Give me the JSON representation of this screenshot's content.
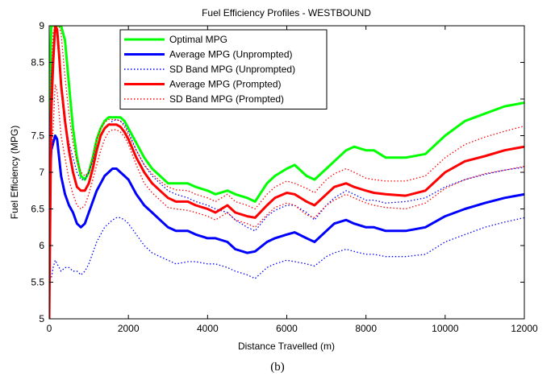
{
  "chart_data": {
    "type": "line",
    "title": "Fuel Efficiency Profiles - WESTBOUND",
    "xlabel": "Distance Travelled (m)",
    "ylabel": "Fuel Efficiency (MPG)",
    "xlim": [
      0,
      12000
    ],
    "ylim": [
      5,
      9
    ],
    "xticks": [
      0,
      2000,
      4000,
      6000,
      8000,
      10000,
      12000
    ],
    "xtick_labels": [
      "0",
      "2000",
      "4000",
      "6000",
      "8000",
      "10000",
      "12000"
    ],
    "yticks": [
      5,
      5.5,
      6,
      6.5,
      7,
      7.5,
      8,
      8.5,
      9
    ],
    "ytick_labels": [
      "5",
      "5.5",
      "6",
      "6.5",
      "7",
      "7.5",
      "8",
      "8.5",
      "9"
    ],
    "grid": false,
    "legend_position": "top-left",
    "series": [
      {
        "name": "Optimal MPG",
        "color": "#00ff00",
        "style": "solid",
        "x": [
          0,
          50,
          100,
          150,
          200,
          250,
          300,
          400,
          500,
          600,
          700,
          800,
          900,
          1000,
          1100,
          1200,
          1300,
          1400,
          1500,
          1600,
          1700,
          1800,
          1900,
          2000,
          2200,
          2400,
          2600,
          2800,
          3000,
          3200,
          3500,
          3700,
          4000,
          4200,
          4500,
          4700,
          5000,
          5200,
          5500,
          5700,
          6000,
          6200,
          6500,
          6700,
          7000,
          7200,
          7500,
          7700,
          8000,
          8200,
          8500,
          9000,
          9500,
          10000,
          10500,
          11000,
          11500,
          12000
        ],
        "y": [
          7.7,
          9.0,
          9.0,
          9.0,
          9.0,
          9.0,
          9.0,
          8.8,
          8.2,
          7.6,
          7.2,
          6.95,
          6.9,
          7.0,
          7.2,
          7.45,
          7.6,
          7.7,
          7.75,
          7.75,
          7.75,
          7.75,
          7.7,
          7.6,
          7.4,
          7.2,
          7.05,
          6.95,
          6.85,
          6.85,
          6.85,
          6.8,
          6.75,
          6.7,
          6.75,
          6.7,
          6.65,
          6.6,
          6.85,
          6.95,
          7.05,
          7.1,
          6.95,
          6.9,
          7.05,
          7.15,
          7.3,
          7.35,
          7.3,
          7.3,
          7.2,
          7.2,
          7.25,
          7.5,
          7.7,
          7.8,
          7.9,
          7.95
        ]
      },
      {
        "name": "Average MPG (Unprompted)",
        "color": "#0000ff",
        "style": "solid",
        "x": [
          0,
          50,
          100,
          150,
          200,
          250,
          300,
          400,
          500,
          600,
          700,
          800,
          900,
          1000,
          1100,
          1200,
          1300,
          1400,
          1500,
          1600,
          1700,
          1800,
          1900,
          2000,
          2200,
          2400,
          2600,
          2800,
          3000,
          3200,
          3500,
          3700,
          4000,
          4200,
          4500,
          4700,
          5000,
          5200,
          5500,
          5700,
          6000,
          6200,
          6500,
          6700,
          7000,
          7200,
          7500,
          7700,
          8000,
          8200,
          8500,
          9000,
          9500,
          10000,
          10500,
          11000,
          11500,
          12000
        ],
        "y": [
          6.6,
          7.3,
          7.4,
          7.5,
          7.45,
          7.2,
          6.95,
          6.7,
          6.55,
          6.45,
          6.3,
          6.25,
          6.3,
          6.45,
          6.6,
          6.75,
          6.85,
          6.95,
          7.0,
          7.05,
          7.05,
          7.0,
          6.95,
          6.9,
          6.7,
          6.55,
          6.45,
          6.35,
          6.25,
          6.2,
          6.2,
          6.15,
          6.1,
          6.1,
          6.05,
          5.95,
          5.9,
          5.92,
          6.05,
          6.1,
          6.15,
          6.18,
          6.1,
          6.05,
          6.2,
          6.3,
          6.35,
          6.3,
          6.25,
          6.25,
          6.2,
          6.2,
          6.25,
          6.4,
          6.5,
          6.58,
          6.65,
          6.7
        ]
      },
      {
        "name": "SD Band MPG (Unprompted)",
        "color": "#0000ff",
        "style": "dotted",
        "x": [
          0,
          50,
          100,
          150,
          200,
          250,
          300,
          400,
          500,
          600,
          700,
          800,
          900,
          1000,
          1100,
          1200,
          1300,
          1400,
          1500,
          1600,
          1700,
          1800,
          1900,
          2000,
          2200,
          2400,
          2600,
          2800,
          3000,
          3200,
          3500,
          3700,
          4000,
          4200,
          4500,
          4700,
          5000,
          5200,
          5500,
          5700,
          6000,
          6200,
          6500,
          6700,
          7000,
          7200,
          7500,
          7700,
          8000,
          8200,
          8500,
          9000,
          9500,
          10000,
          10500,
          11000,
          11500,
          12000
        ],
        "y": [
          5.55,
          5.55,
          5.7,
          5.8,
          5.75,
          5.7,
          5.65,
          5.7,
          5.7,
          5.65,
          5.65,
          5.6,
          5.65,
          5.75,
          5.9,
          6.05,
          6.15,
          6.25,
          6.3,
          6.35,
          6.38,
          6.38,
          6.35,
          6.3,
          6.15,
          6.0,
          5.9,
          5.85,
          5.8,
          5.75,
          5.78,
          5.78,
          5.75,
          5.75,
          5.7,
          5.65,
          5.6,
          5.55,
          5.7,
          5.75,
          5.8,
          5.78,
          5.75,
          5.72,
          5.85,
          5.9,
          5.95,
          5.92,
          5.88,
          5.88,
          5.85,
          5.85,
          5.88,
          6.05,
          6.15,
          6.25,
          6.32,
          6.38
        ]
      },
      {
        "name": "SD Band MPG (Unprompted)",
        "color": "#0000ff",
        "style": "dotted",
        "x": [
          0,
          50,
          100,
          150,
          200,
          250,
          300,
          400,
          500,
          600,
          700,
          800,
          900,
          1000,
          1100,
          1200,
          1300,
          1400,
          1500,
          1600,
          1700,
          1800,
          1900,
          2000,
          2200,
          2400,
          2600,
          2800,
          3000,
          3200,
          3500,
          3700,
          4000,
          4200,
          4500,
          4700,
          5000,
          5200,
          5500,
          5700,
          6000,
          6200,
          6500,
          6700,
          7000,
          7200,
          7500,
          7700,
          8000,
          8200,
          8500,
          9000,
          9500,
          10000,
          10500,
          11000,
          11500,
          12000
        ],
        "y": [
          7.2,
          8.3,
          8.7,
          9.0,
          8.9,
          8.5,
          8.1,
          7.7,
          7.4,
          7.2,
          7.0,
          6.9,
          6.9,
          7.0,
          7.15,
          7.35,
          7.5,
          7.6,
          7.65,
          7.7,
          7.72,
          7.7,
          7.65,
          7.55,
          7.3,
          7.1,
          6.95,
          6.85,
          6.75,
          6.7,
          6.65,
          6.6,
          6.55,
          6.5,
          6.45,
          6.35,
          6.25,
          6.2,
          6.4,
          6.48,
          6.55,
          6.55,
          6.45,
          6.35,
          6.55,
          6.65,
          6.75,
          6.7,
          6.62,
          6.62,
          6.58,
          6.6,
          6.65,
          6.8,
          6.9,
          6.97,
          7.03,
          7.07
        ]
      },
      {
        "name": "Average MPG (Prompted)",
        "color": "#ff0000",
        "style": "solid",
        "x": [
          0,
          50,
          100,
          150,
          200,
          250,
          300,
          400,
          500,
          600,
          700,
          800,
          900,
          1000,
          1100,
          1200,
          1300,
          1400,
          1500,
          1600,
          1700,
          1800,
          1900,
          2000,
          2200,
          2400,
          2600,
          2800,
          3000,
          3200,
          3500,
          3700,
          4000,
          4200,
          4500,
          4700,
          5000,
          5200,
          5500,
          5700,
          6000,
          6200,
          6500,
          6700,
          7000,
          7200,
          7500,
          7700,
          8000,
          8200,
          8500,
          9000,
          9500,
          10000,
          10500,
          11000,
          11500,
          12000
        ],
        "y": [
          5.0,
          7.8,
          8.5,
          9.0,
          8.95,
          8.6,
          8.2,
          7.7,
          7.3,
          7.0,
          6.8,
          6.75,
          6.75,
          6.85,
          7.05,
          7.3,
          7.5,
          7.6,
          7.65,
          7.65,
          7.65,
          7.62,
          7.55,
          7.45,
          7.2,
          7.0,
          6.85,
          6.75,
          6.65,
          6.6,
          6.6,
          6.55,
          6.5,
          6.45,
          6.55,
          6.45,
          6.4,
          6.38,
          6.55,
          6.65,
          6.72,
          6.7,
          6.6,
          6.55,
          6.7,
          6.8,
          6.85,
          6.8,
          6.75,
          6.72,
          6.7,
          6.68,
          6.75,
          7.0,
          7.15,
          7.22,
          7.3,
          7.35
        ]
      },
      {
        "name": "SD Band MPG (Prompted)",
        "color": "#ff0000",
        "style": "dotted",
        "x": [
          0,
          50,
          100,
          150,
          200,
          250,
          300,
          400,
          500,
          600,
          700,
          800,
          900,
          1000,
          1100,
          1200,
          1300,
          1400,
          1500,
          1600,
          1700,
          1800,
          1900,
          2000,
          2200,
          2400,
          2600,
          2800,
          3000,
          3200,
          3500,
          3700,
          4000,
          4200,
          4500,
          4700,
          5000,
          5200,
          5500,
          5700,
          6000,
          6200,
          6500,
          6700,
          7000,
          7200,
          7500,
          7700,
          8000,
          8200,
          8500,
          9000,
          9500,
          10000,
          10500,
          11000,
          11500,
          12000
        ],
        "y": [
          6.6,
          7.2,
          7.6,
          8.2,
          8.1,
          7.8,
          7.5,
          7.2,
          6.9,
          6.7,
          6.55,
          6.5,
          6.55,
          6.7,
          6.9,
          7.1,
          7.3,
          7.45,
          7.55,
          7.58,
          7.58,
          7.55,
          7.48,
          7.38,
          7.1,
          6.85,
          6.72,
          6.62,
          6.52,
          6.5,
          6.48,
          6.45,
          6.4,
          6.35,
          6.45,
          6.35,
          6.3,
          6.25,
          6.42,
          6.52,
          6.58,
          6.55,
          6.42,
          6.38,
          6.55,
          6.62,
          6.7,
          6.65,
          6.58,
          6.55,
          6.52,
          6.5,
          6.58,
          6.78,
          6.9,
          6.98,
          7.03,
          7.08
        ]
      },
      {
        "name": "SD Band MPG (Prompted)",
        "color": "#ff0000",
        "style": "dotted",
        "x": [
          0,
          50,
          100,
          150,
          200,
          250,
          300,
          400,
          500,
          600,
          700,
          800,
          900,
          1000,
          1100,
          1200,
          1300,
          1400,
          1500,
          1600,
          1700,
          1800,
          1900,
          2000,
          2200,
          2400,
          2600,
          2800,
          3000,
          3200,
          3500,
          3700,
          4000,
          4200,
          4500,
          4700,
          5000,
          5200,
          5500,
          5700,
          6000,
          6200,
          6500,
          6700,
          7000,
          7200,
          7500,
          7700,
          8000,
          8200,
          8500,
          9000,
          9500,
          10000,
          10500,
          11000,
          11500,
          12000
        ],
        "y": [
          7.4,
          8.3,
          8.9,
          9.0,
          9.0,
          9.0,
          8.9,
          8.3,
          7.8,
          7.4,
          7.15,
          7.0,
          6.95,
          7.0,
          7.2,
          7.45,
          7.6,
          7.68,
          7.72,
          7.72,
          7.72,
          7.7,
          7.62,
          7.52,
          7.3,
          7.1,
          6.98,
          6.88,
          6.8,
          6.76,
          6.75,
          6.7,
          6.65,
          6.6,
          6.7,
          6.6,
          6.55,
          6.5,
          6.7,
          6.8,
          6.88,
          6.85,
          6.78,
          6.72,
          6.9,
          6.98,
          7.05,
          7.0,
          6.92,
          6.9,
          6.88,
          6.88,
          6.95,
          7.2,
          7.38,
          7.48,
          7.56,
          7.63
        ]
      }
    ],
    "legend_entries": [
      {
        "name": "Optimal MPG",
        "color": "#00ff00",
        "style": "solid"
      },
      {
        "name": "Average MPG (Unprompted)",
        "color": "#0000ff",
        "style": "solid"
      },
      {
        "name": "SD Band MPG (Unprompted)",
        "color": "#0000ff",
        "style": "dotted"
      },
      {
        "name": "Average MPG (Prompted)",
        "color": "#ff0000",
        "style": "solid"
      },
      {
        "name": "SD Band MPG (Prompted)",
        "color": "#ff0000",
        "style": "dotted"
      }
    ]
  },
  "caption": "(b)"
}
